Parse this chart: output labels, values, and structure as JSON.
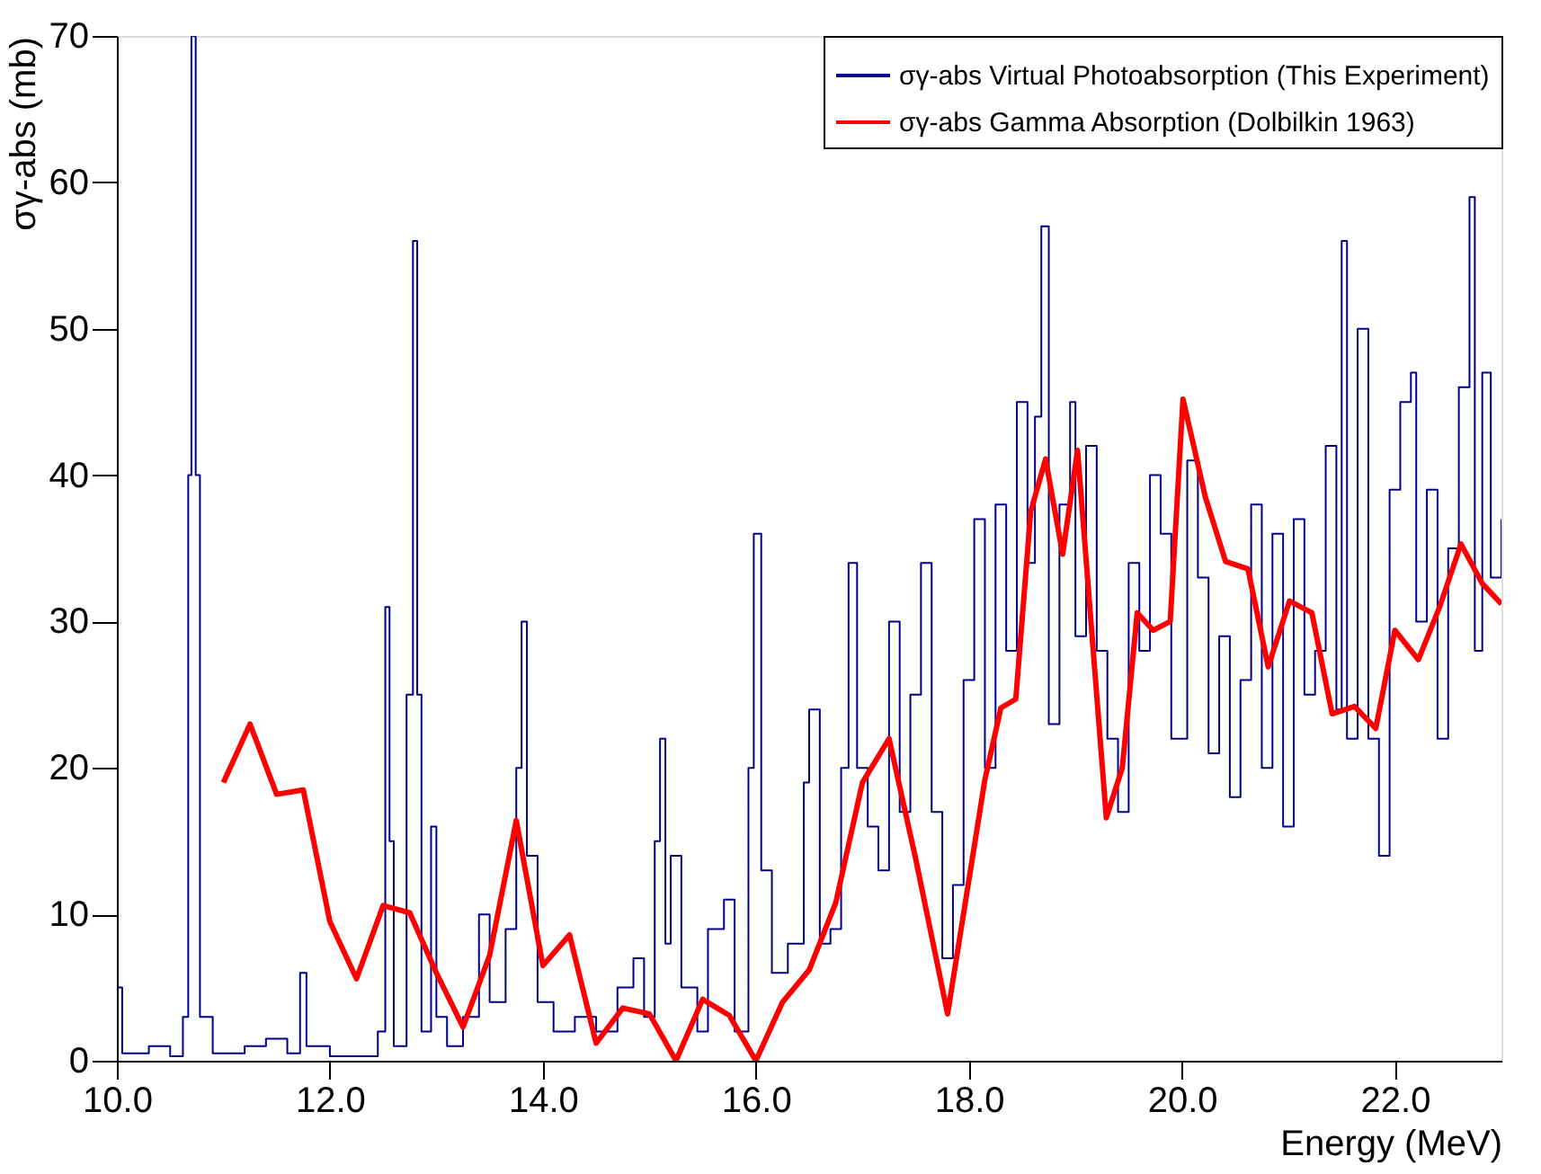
{
  "chart_data": {
    "type": "line",
    "xlabel": "Energy (MeV)",
    "ylabel": "σγ-abs (mb)",
    "xlim": [
      10,
      23
    ],
    "xticks": [
      {
        "value": 10,
        "label": "10.0"
      },
      {
        "value": 12,
        "label": "12.0"
      },
      {
        "value": 14,
        "label": "14.0"
      },
      {
        "value": 16,
        "label": "16.0"
      },
      {
        "value": 18,
        "label": "18.0"
      },
      {
        "value": 20,
        "label": "20.0"
      },
      {
        "value": 22,
        "label": "22.0"
      }
    ],
    "ylim": [
      0,
      70
    ],
    "yticks": [
      0,
      10,
      20,
      30,
      40,
      50,
      60,
      70
    ],
    "grid": false,
    "legend": "top right",
    "marker": "none",
    "line_style": "solid",
    "series": [
      {
        "name": "σγ-abs Virtual Photoabsorption (This Experiment)",
        "type": "step",
        "color": "#00008b",
        "x": [
          10.0,
          10.05,
          10.1,
          10.3,
          10.5,
          10.62,
          10.67,
          10.7,
          10.74,
          10.78,
          10.9,
          11.2,
          11.4,
          11.6,
          11.72,
          11.78,
          12.0,
          12.3,
          12.45,
          12.52,
          12.56,
          12.6,
          12.72,
          12.78,
          12.82,
          12.86,
          12.95,
          13.0,
          13.1,
          13.25,
          13.4,
          13.5,
          13.65,
          13.75,
          13.8,
          13.85,
          13.95,
          14.1,
          14.3,
          14.5,
          14.7,
          14.85,
          14.95,
          15.05,
          15.1,
          15.15,
          15.2,
          15.3,
          15.45,
          15.55,
          15.7,
          15.8,
          15.93,
          15.98,
          16.05,
          16.15,
          16.3,
          16.45,
          16.5,
          16.6,
          16.7,
          16.8,
          16.87,
          16.95,
          17.05,
          17.15,
          17.25,
          17.35,
          17.45,
          17.55,
          17.65,
          17.75,
          17.85,
          17.95,
          18.05,
          18.15,
          18.25,
          18.35,
          18.45,
          18.55,
          18.62,
          18.68,
          18.75,
          18.85,
          18.95,
          19.0,
          19.1,
          19.2,
          19.3,
          19.4,
          19.5,
          19.6,
          19.7,
          19.8,
          19.9,
          20.05,
          20.15,
          20.25,
          20.35,
          20.45,
          20.55,
          20.65,
          20.75,
          20.85,
          20.95,
          21.05,
          21.15,
          21.25,
          21.35,
          21.45,
          21.5,
          21.55,
          21.65,
          21.75,
          21.85,
          21.95,
          22.05,
          22.15,
          22.2,
          22.3,
          22.4,
          22.5,
          22.6,
          22.7,
          22.75,
          22.82,
          22.9,
          23.0
        ],
        "values": [
          5,
          0.5,
          0.5,
          1,
          0.3,
          3,
          40,
          70,
          40,
          3,
          0.5,
          1,
          1.5,
          0.5,
          6,
          1,
          0.3,
          0.3,
          2,
          31,
          15,
          1,
          25,
          56,
          25,
          2,
          16,
          3,
          1,
          3,
          10,
          4,
          9,
          20,
          30,
          14,
          4,
          2,
          3,
          2,
          5,
          7,
          3,
          15,
          22,
          8,
          14,
          5,
          2,
          9,
          11,
          2,
          20,
          36,
          13,
          6,
          8,
          19,
          24,
          8,
          9,
          20,
          34,
          20,
          16,
          13,
          30,
          17,
          25,
          34,
          17,
          7,
          12,
          26,
          37,
          20,
          38,
          28,
          45,
          34,
          44,
          57,
          23,
          38,
          45,
          29,
          42,
          28,
          22,
          17,
          34,
          28,
          40,
          36,
          22,
          41,
          33,
          21,
          29,
          18,
          26,
          38,
          20,
          36,
          16,
          37,
          25,
          28,
          42,
          24,
          56,
          22,
          50,
          22,
          14,
          39,
          45,
          47,
          30,
          39,
          22,
          35,
          46,
          59,
          28,
          47,
          33,
          37
        ]
      },
      {
        "name": "σγ-abs Gamma Absorption (Dolbilkin 1963)",
        "type": "line",
        "color": "#ff0000",
        "x": [
          11.0,
          11.25,
          11.5,
          11.75,
          12.0,
          12.25,
          12.5,
          12.75,
          13.0,
          13.25,
          13.5,
          13.75,
          14.0,
          14.25,
          14.5,
          14.75,
          15.0,
          15.25,
          15.5,
          15.75,
          16.0,
          16.25,
          16.5,
          16.75,
          17.0,
          17.25,
          17.5,
          17.8,
          18.15,
          18.3,
          18.44,
          18.58,
          18.72,
          18.88,
          19.02,
          19.29,
          19.44,
          19.58,
          19.73,
          19.89,
          20.01,
          20.22,
          20.41,
          20.62,
          20.81,
          21.01,
          21.22,
          21.41,
          21.62,
          21.82,
          22.0,
          22.22,
          22.42,
          22.62,
          22.82,
          23.0
        ],
        "values": [
          19,
          23,
          18.2,
          18.5,
          9.5,
          5.6,
          10.6,
          10.1,
          6,
          2.3,
          7.2,
          16.4,
          6.5,
          8.6,
          1.2,
          3.6,
          3.2,
          0,
          4.2,
          3.1,
          0,
          4,
          6.2,
          10.8,
          19,
          22,
          13.8,
          3.2,
          19.2,
          24.1,
          24.7,
          37.5,
          41.1,
          34.6,
          41.7,
          16.6,
          20,
          30.6,
          29.4,
          30,
          45.2,
          38.5,
          34.1,
          33.6,
          26.9,
          31.4,
          30.6,
          23.7,
          24.2,
          22.7,
          29.4,
          27.4,
          31,
          35.3,
          32.6,
          31.2
        ]
      }
    ]
  }
}
